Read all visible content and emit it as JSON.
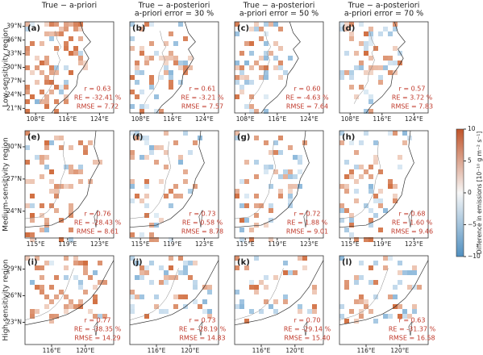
{
  "columns": [
    {
      "title": [
        "True − a-priori"
      ]
    },
    {
      "title": [
        "True − a-posteriori",
        "a-priori error = 30 %"
      ]
    },
    {
      "title": [
        "True − a-posteriori",
        "a-priori error = 50 %"
      ]
    },
    {
      "title": [
        "True − a-posteriori",
        "a-priori error = 70 %"
      ]
    }
  ],
  "rows": [
    {
      "label": "Low-sensitivity region",
      "xticks": [
        "108°E",
        "116°E",
        "124°E"
      ],
      "yticks": [
        "39°N",
        "36°N",
        "33°N",
        "30°N",
        "27°N",
        "24°N",
        "21°N"
      ],
      "panels": [
        {
          "letter": "(a)",
          "r": "r = 0.63",
          "re": "RE = -32.41 %",
          "rmse": "RMSE = 7.72"
        },
        {
          "letter": "(b)",
          "r": "r = 0.61",
          "re": "RE = -3.21 %",
          "rmse": "RMSE = 7.57"
        },
        {
          "letter": "(c)",
          "r": "r = 0.60",
          "re": "RE = -4.63 %",
          "rmse": "RMSE = 7.64"
        },
        {
          "letter": "(d)",
          "r": "r = 0.57",
          "re": "RE = 3.72 %",
          "rmse": "RMSE = 7.83"
        }
      ]
    },
    {
      "label": "Medium-sensitivity region",
      "xticks": [
        "115°E",
        "119°E",
        "123°E"
      ],
      "yticks": [
        "30°N",
        "27°N",
        "24°N"
      ],
      "panels": [
        {
          "letter": "(e)",
          "r": "r = 0.76",
          "re": "RE = -28.43 %",
          "rmse": "RMSE = 8.61"
        },
        {
          "letter": "(f)",
          "r": "r = 0.73",
          "re": "RE = 0.58 %",
          "rmse": "RMSE = 8.78"
        },
        {
          "letter": "(g)",
          "r": "r = 0.72",
          "re": "RE = 1.88 %",
          "rmse": "RMSE = 9.01"
        },
        {
          "letter": "(h)",
          "r": "r = 0.68",
          "re": "RE = 1.60 %",
          "rmse": "RMSE = 9.46"
        }
      ]
    },
    {
      "label": "High-sensitivity region",
      "xticks": [
        "116°E",
        "120°E"
      ],
      "yticks": [
        "29°N",
        "26°N",
        "23°N"
      ],
      "panels": [
        {
          "letter": "(i)",
          "r": "r = 0.77",
          "re": "RE = -38.35 %",
          "rmse": "RMSE = 14.29"
        },
        {
          "letter": "(j)",
          "r": "r = 0.73",
          "re": "RE = -28.19 %",
          "rmse": "RMSE = 14.83"
        },
        {
          "letter": "(k)",
          "r": "r = 0.70",
          "re": "RE = -29.14 %",
          "rmse": "RMSE = 15.40"
        },
        {
          "letter": "(l)",
          "r": "r = 0.63",
          "re": "RE = -31.37 %",
          "rmse": "RMSE = 16.58"
        }
      ]
    }
  ],
  "colorbar": {
    "label": "Difference in emissions [10⁻¹⁰ g m⁻² s⁻¹]",
    "lim": [
      -10,
      10
    ],
    "ticks": [
      10,
      5,
      0,
      {
        "value": -5,
        "label": "−5"
      },
      {
        "value": -10,
        "label": "−10"
      }
    ]
  }
}
